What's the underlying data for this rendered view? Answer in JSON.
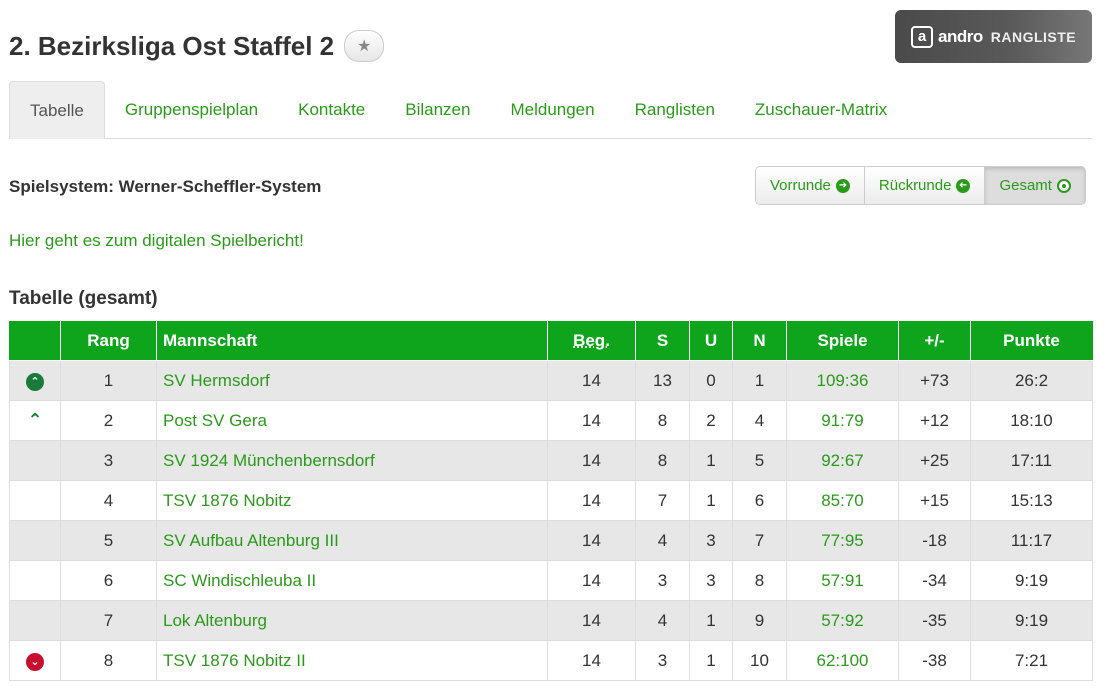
{
  "header": {
    "title": "2. Bezirksliga Ost Staffel 2",
    "favorite_icon": "star-icon",
    "logo": {
      "mark": "a",
      "brand": "andro",
      "label": "RANGLISTE"
    }
  },
  "tabs": [
    {
      "label": "Tabelle",
      "active": true
    },
    {
      "label": "Gruppenspielplan"
    },
    {
      "label": "Kontakte"
    },
    {
      "label": "Bilanzen"
    },
    {
      "label": "Meldungen"
    },
    {
      "label": "Ranglisten"
    },
    {
      "label": "Zuschauer-Matrix"
    }
  ],
  "system": {
    "label": "Spielsystem: Werner-Scheffler-System",
    "rounds": [
      {
        "label": "Vorrunde",
        "icon": "arrow-right-circle-icon"
      },
      {
        "label": "Rückrunde",
        "icon": "arrow-left-circle-icon"
      },
      {
        "label": "Gesamt",
        "icon": "dot-circle-icon",
        "active": true
      }
    ]
  },
  "report_link": "Hier geht es zum digitalen Spielbericht!",
  "table": {
    "title": "Tabelle (gesamt)",
    "headers": {
      "rang": "Rang",
      "team": "Mannschaft",
      "beg": "Beg.",
      "s": "S",
      "u": "U",
      "n": "N",
      "spiele": "Spiele",
      "diff": "+/-",
      "punkte": "Punkte"
    },
    "rows": [
      {
        "tendency": "promotion",
        "rang": "1",
        "team": "SV Hermsdorf",
        "beg": "14",
        "s": "13",
        "u": "0",
        "n": "1",
        "spiele": "109:36",
        "diff": "+73",
        "punkte": "26:2"
      },
      {
        "tendency": "relegation-up",
        "rang": "2",
        "team": "Post SV Gera",
        "beg": "14",
        "s": "8",
        "u": "2",
        "n": "4",
        "spiele": "91:79",
        "diff": "+12",
        "punkte": "18:10"
      },
      {
        "tendency": "",
        "rang": "3",
        "team": "SV 1924 Münchenbernsdorf",
        "beg": "14",
        "s": "8",
        "u": "1",
        "n": "5",
        "spiele": "92:67",
        "diff": "+25",
        "punkte": "17:11"
      },
      {
        "tendency": "",
        "rang": "4",
        "team": "TSV 1876 Nobitz",
        "beg": "14",
        "s": "7",
        "u": "1",
        "n": "6",
        "spiele": "85:70",
        "diff": "+15",
        "punkte": "15:13"
      },
      {
        "tendency": "",
        "rang": "5",
        "team": "SV Aufbau Altenburg III",
        "beg": "14",
        "s": "4",
        "u": "3",
        "n": "7",
        "spiele": "77:95",
        "diff": "-18",
        "punkte": "11:17"
      },
      {
        "tendency": "",
        "rang": "6",
        "team": "SC Windischleuba II",
        "beg": "14",
        "s": "3",
        "u": "3",
        "n": "8",
        "spiele": "57:91",
        "diff": "-34",
        "punkte": "9:19"
      },
      {
        "tendency": "",
        "rang": "7",
        "team": "Lok Altenburg",
        "beg": "14",
        "s": "4",
        "u": "1",
        "n": "9",
        "spiele": "57:92",
        "diff": "-35",
        "punkte": "9:19"
      },
      {
        "tendency": "relegation",
        "rang": "8",
        "team": "TSV 1876 Nobitz II",
        "beg": "14",
        "s": "3",
        "u": "1",
        "n": "10",
        "spiele": "62:100",
        "diff": "-38",
        "punkte": "7:21"
      }
    ]
  },
  "colors": {
    "accent": "#0ea51d",
    "link": "#2a9a1a",
    "promotion": "#1a7a3a",
    "relegation": "#c8102e"
  }
}
